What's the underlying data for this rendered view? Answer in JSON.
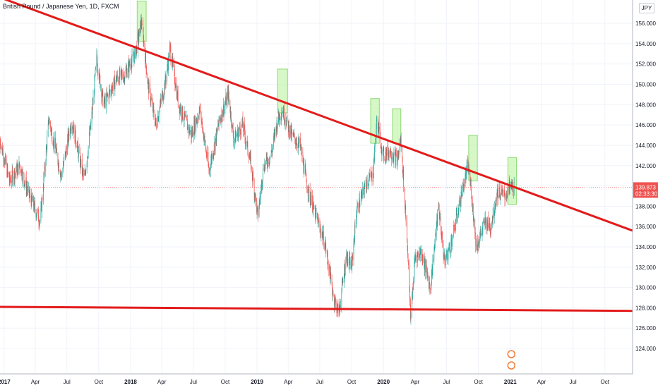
{
  "header": {
    "symbol_title": "British Pound / Japanese Yen, 1D, FXCM",
    "currency_badge": "JPY"
  },
  "colors": {
    "up": "#26a69a",
    "down": "#ef5350",
    "trendline": "#e31b1b",
    "highlight_fill": "#c8f5b4",
    "highlight_stroke": "#8fd977",
    "price_tag": "#ef5350"
  },
  "chart_data": {
    "type": "candlestick",
    "symbol": "GBPJPY",
    "timeframe": "1D",
    "x_start": "2016-12-20",
    "x_end": "2021-12-20",
    "y_range": [
      121.5,
      158.3
    ],
    "y_ticks": [
      {
        "value": 124,
        "label": "124.000"
      },
      {
        "value": 126,
        "label": "126.000"
      },
      {
        "value": 128,
        "label": "128.000"
      },
      {
        "value": 130,
        "label": "130.000"
      },
      {
        "value": 132,
        "label": "132.000"
      },
      {
        "value": 134,
        "label": "134.000"
      },
      {
        "value": 136,
        "label": "136.000"
      },
      {
        "value": 138,
        "label": "138.000"
      },
      {
        "value": 140,
        "label": "140.000"
      },
      {
        "value": 142,
        "label": "142.000"
      },
      {
        "value": 144,
        "label": "144.000"
      },
      {
        "value": 146,
        "label": "146.000"
      },
      {
        "value": 148,
        "label": "148.000"
      },
      {
        "value": 150,
        "label": "150.000"
      },
      {
        "value": 152,
        "label": "152.000"
      },
      {
        "value": 154,
        "label": "154.000"
      },
      {
        "value": 156,
        "label": "156.000"
      }
    ],
    "x_ticks": [
      {
        "date": "2017-01-01",
        "label": "2017",
        "bold": true
      },
      {
        "date": "2017-04-01",
        "label": "Apr",
        "bold": false
      },
      {
        "date": "2017-07-01",
        "label": "Jul",
        "bold": false
      },
      {
        "date": "2017-10-01",
        "label": "Oct",
        "bold": false
      },
      {
        "date": "2018-01-01",
        "label": "2018",
        "bold": true
      },
      {
        "date": "2018-04-01",
        "label": "Apr",
        "bold": false
      },
      {
        "date": "2018-07-01",
        "label": "Jul",
        "bold": false
      },
      {
        "date": "2018-10-01",
        "label": "Oct",
        "bold": false
      },
      {
        "date": "2019-01-01",
        "label": "2019",
        "bold": true
      },
      {
        "date": "2019-04-01",
        "label": "Apr",
        "bold": false
      },
      {
        "date": "2019-07-01",
        "label": "Jul",
        "bold": false
      },
      {
        "date": "2019-10-01",
        "label": "Oct",
        "bold": false
      },
      {
        "date": "2020-01-01",
        "label": "2020",
        "bold": true
      },
      {
        "date": "2020-04-01",
        "label": "Apr",
        "bold": false
      },
      {
        "date": "2020-07-01",
        "label": "Jul",
        "bold": false
      },
      {
        "date": "2020-10-01",
        "label": "Oct",
        "bold": false
      },
      {
        "date": "2021-01-01",
        "label": "2021",
        "bold": true
      },
      {
        "date": "2021-04-01",
        "label": "Apr",
        "bold": false
      },
      {
        "date": "2021-07-01",
        "label": "Jul",
        "bold": false
      },
      {
        "date": "2021-10-01",
        "label": "Oct",
        "bold": false
      }
    ],
    "price_path": [
      [
        "2016-12-20",
        144.5
      ],
      [
        "2017-01-16",
        140.5
      ],
      [
        "2017-02-15",
        142
      ],
      [
        "2017-03-10",
        139.5
      ],
      [
        "2017-04-15",
        136.5
      ],
      [
        "2017-05-10",
        146.5
      ],
      [
        "2017-06-15",
        141
      ],
      [
        "2017-07-15",
        146.5
      ],
      [
        "2017-08-20",
        140.5
      ],
      [
        "2017-09-10",
        146.5
      ],
      [
        "2017-09-25",
        152.5
      ],
      [
        "2017-10-15",
        148
      ],
      [
        "2017-11-20",
        150.5
      ],
      [
        "2017-12-15",
        151
      ],
      [
        "2018-01-15",
        153
      ],
      [
        "2018-02-02",
        156.3
      ],
      [
        "2018-02-20",
        150
      ],
      [
        "2018-03-15",
        146
      ],
      [
        "2018-04-10",
        150
      ],
      [
        "2018-04-25",
        153.5
      ],
      [
        "2018-05-20",
        148
      ],
      [
        "2018-06-25",
        145
      ],
      [
        "2018-07-20",
        147.5
      ],
      [
        "2018-08-15",
        141.5
      ],
      [
        "2018-09-15",
        146.5
      ],
      [
        "2018-10-10",
        149
      ],
      [
        "2018-10-26",
        144.5
      ],
      [
        "2018-11-20",
        146
      ],
      [
        "2018-12-15",
        142
      ],
      [
        "2019-01-03",
        137
      ],
      [
        "2019-01-20",
        142
      ],
      [
        "2019-02-10",
        143
      ],
      [
        "2019-03-01",
        146.5
      ],
      [
        "2019-03-15",
        147.5
      ],
      [
        "2019-04-10",
        145
      ],
      [
        "2019-05-05",
        144
      ],
      [
        "2019-05-25",
        140
      ],
      [
        "2019-06-20",
        137
      ],
      [
        "2019-07-15",
        134.5
      ],
      [
        "2019-08-10",
        129
      ],
      [
        "2019-08-25",
        127.5
      ],
      [
        "2019-09-15",
        133
      ],
      [
        "2019-10-01",
        132
      ],
      [
        "2019-10-15",
        137.5
      ],
      [
        "2019-11-15",
        140.5
      ],
      [
        "2019-12-01",
        141
      ],
      [
        "2019-12-13",
        146.5
      ],
      [
        "2019-12-31",
        143
      ],
      [
        "2020-01-20",
        143.5
      ],
      [
        "2020-02-10",
        142.5
      ],
      [
        "2020-02-20",
        144.5
      ],
      [
        "2020-03-02",
        139
      ],
      [
        "2020-03-12",
        133
      ],
      [
        "2020-03-19",
        127
      ],
      [
        "2020-04-01",
        133
      ],
      [
        "2020-04-20",
        133.5
      ],
      [
        "2020-05-15",
        130
      ],
      [
        "2020-06-08",
        138
      ],
      [
        "2020-06-25",
        132.5
      ],
      [
        "2020-07-15",
        134.5
      ],
      [
        "2020-08-15",
        139.5
      ],
      [
        "2020-09-01",
        142
      ],
      [
        "2020-09-10",
        139.5
      ],
      [
        "2020-09-25",
        134
      ],
      [
        "2020-10-20",
        136.5
      ],
      [
        "2020-11-05",
        136
      ],
      [
        "2020-11-25",
        139.5
      ],
      [
        "2020-12-15",
        139
      ],
      [
        "2021-01-04",
        140
      ],
      [
        "2021-01-12",
        139.9
      ]
    ],
    "series": [
      {
        "kind": "trendline",
        "points": [
          [
            "2017-01-01",
            158.4
          ],
          [
            "2021-12-20",
            135.6
          ]
        ]
      },
      {
        "kind": "trendline",
        "points": [
          [
            "2016-12-20",
            128.1
          ],
          [
            "2021-12-20",
            127.7
          ]
        ]
      }
    ],
    "highlight_zones": [
      {
        "x0": "2018-01-20",
        "x1": "2018-02-15",
        "y0": 154.2,
        "y1": 158.2
      },
      {
        "x0": "2019-03-01",
        "x1": "2019-03-30",
        "y0": 147.2,
        "y1": 151.5
      },
      {
        "x0": "2019-11-25",
        "x1": "2019-12-20",
        "y0": 144.2,
        "y1": 148.6
      },
      {
        "x0": "2020-01-27",
        "x1": "2020-02-20",
        "y0": 144.2,
        "y1": 147.6
      },
      {
        "x0": "2020-09-03",
        "x1": "2020-09-28",
        "y0": 140.5,
        "y1": 145.0
      },
      {
        "x0": "2020-12-25",
        "x1": "2021-01-19",
        "y0": 138.2,
        "y1": 142.8
      }
    ],
    "last_price": {
      "value": 139.873,
      "label": "139.873",
      "countdown": "02:33:30"
    }
  }
}
